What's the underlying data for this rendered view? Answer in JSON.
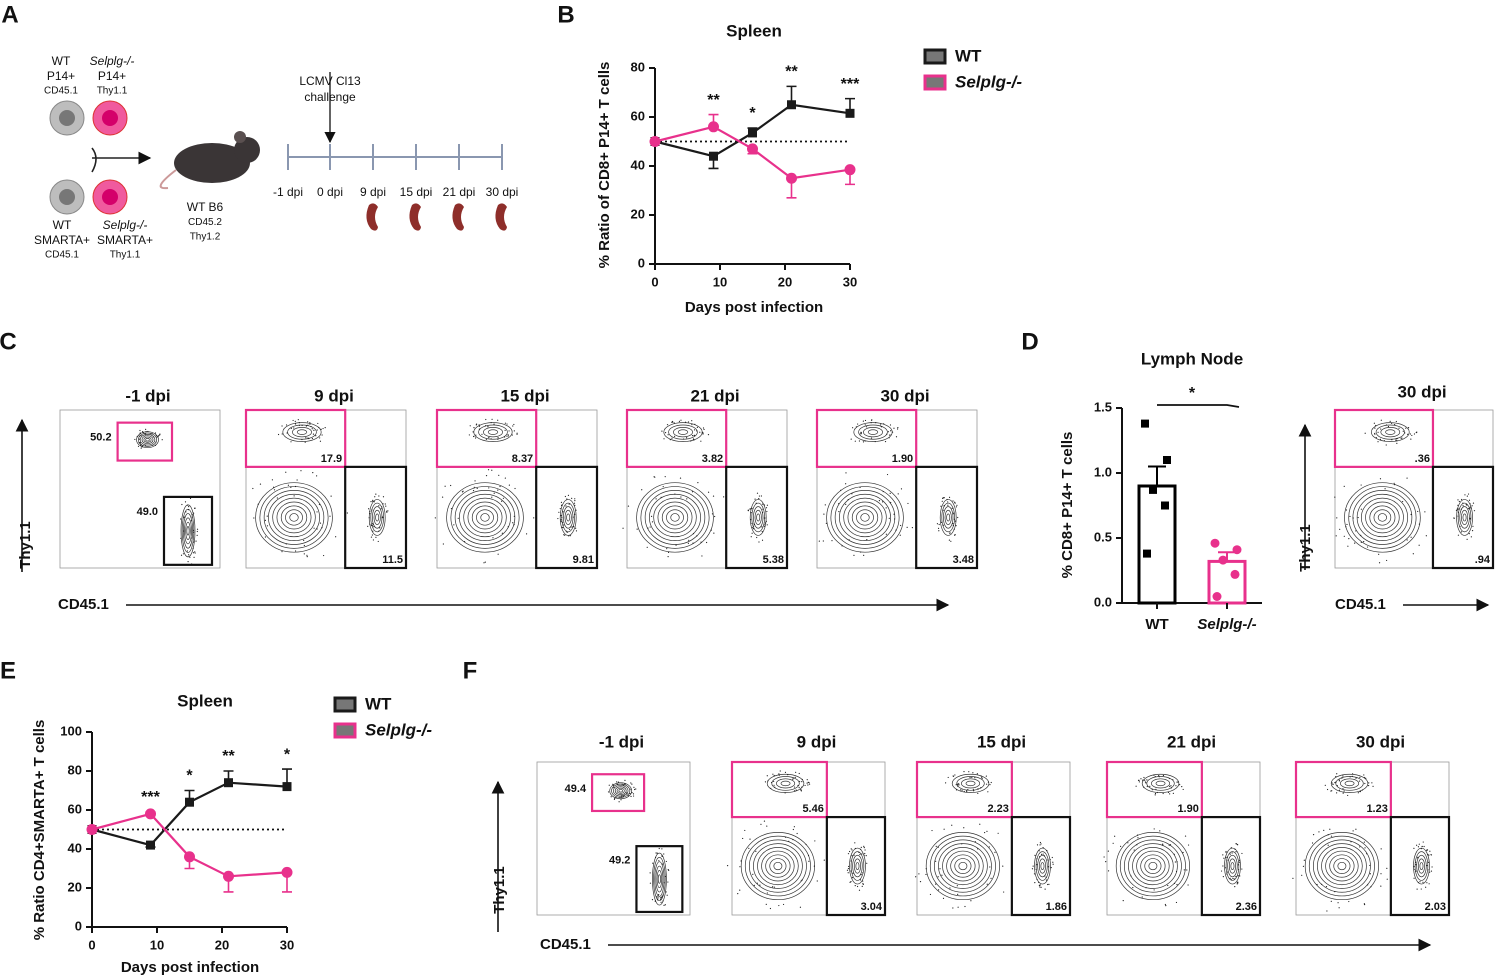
{
  "panel_labels": [
    "A",
    "B",
    "C",
    "D",
    "E",
    "F"
  ],
  "panel_a": {
    "donors": [
      {
        "lines": [
          "WT",
          "P14+",
          "CD45.1"
        ]
      },
      {
        "lines": [
          "Selplg-/-",
          "P14+",
          "Thy1.1"
        ]
      },
      {
        "lines": [
          "WT",
          "SMARTA+",
          "CD45.1"
        ]
      },
      {
        "lines": [
          "Selplg-/-",
          "SMARTA+",
          "Thy1.1"
        ]
      }
    ],
    "host": [
      "WT B6",
      "CD45.2",
      "Thy1.2"
    ],
    "challenge": [
      "LCMV Cl13",
      "challenge"
    ],
    "timeline": [
      "-1 dpi",
      "0 dpi",
      "9 dpi",
      "15 dpi",
      "21 dpi",
      "30 dpi"
    ]
  },
  "chart_data": [
    {
      "type": "line",
      "title": "Spleen",
      "x_label": "Days post infection",
      "y_label": "% Ratio of CD8+ P14+ T cells",
      "x": [
        0,
        9,
        15,
        21,
        30
      ],
      "xlim": [
        0,
        30
      ],
      "xticks": [
        0,
        10,
        20,
        30
      ],
      "ylim": [
        0,
        80
      ],
      "yticks": [
        0,
        20,
        40,
        60,
        80
      ],
      "reference_line": 50,
      "series": [
        {
          "name": "WT",
          "color": "#1a1a1a",
          "marker": "square",
          "values": [
            50,
            44,
            53.5,
            65,
            61.5
          ],
          "errors": [
            0,
            5,
            2,
            7.5,
            6
          ]
        },
        {
          "name": "Selplg-/-",
          "color": "#e8318c",
          "marker": "circle",
          "values": [
            50,
            56,
            47,
            35,
            38.5
          ],
          "errors": [
            0,
            5,
            2,
            8,
            6
          ]
        }
      ],
      "annotations": [
        {
          "x": 9,
          "text": "**"
        },
        {
          "x": 15,
          "text": "*"
        },
        {
          "x": 21,
          "text": "**"
        },
        {
          "x": 30,
          "text": "***"
        }
      ]
    },
    {
      "type": "bar",
      "title": "Lymph Node",
      "y_label": "% CD8+ P14+ T cells",
      "categories": [
        "WT",
        "Selplg-/-"
      ],
      "values": [
        0.9,
        0.32
      ],
      "errors": [
        0.15,
        0.07
      ],
      "points": [
        [
          1.38,
          1.1,
          0.87,
          0.75,
          0.38
        ],
        [
          0.46,
          0.41,
          0.33,
          0.22,
          0.05
        ]
      ],
      "colors": [
        "#000000",
        "#e8318c"
      ],
      "ylim": [
        0,
        1.5
      ],
      "yticks": [
        {
          "value": 0,
          "label": "0.0"
        },
        {
          "value": 0.5,
          "label": "0.5"
        },
        {
          "value": 1,
          "label": "1.0"
        },
        {
          "value": 1.5,
          "label": "1.5"
        }
      ],
      "annotations": [
        {
          "text": "*"
        }
      ]
    },
    {
      "type": "line",
      "title": "Spleen",
      "x_label": "Days post infection",
      "y_label": "% Ratio CD4+SMARTA+ T cells",
      "x": [
        0,
        9,
        15,
        21,
        30
      ],
      "xlim": [
        0,
        30
      ],
      "xticks": [
        0,
        10,
        20,
        30
      ],
      "ylim": [
        0,
        100
      ],
      "yticks": [
        0,
        20,
        40,
        60,
        80,
        100
      ],
      "reference_line": 50,
      "series": [
        {
          "name": "WT",
          "color": "#1a1a1a",
          "marker": "square",
          "values": [
            50,
            42,
            64,
            74,
            72
          ],
          "errors": [
            0,
            1,
            6,
            6,
            9
          ]
        },
        {
          "name": "Selplg-/-",
          "color": "#e8318c",
          "marker": "circle",
          "values": [
            50,
            58,
            36,
            26,
            28
          ],
          "errors": [
            0,
            1,
            6,
            8,
            10
          ]
        }
      ],
      "annotations": [
        {
          "x": 9,
          "text": "***"
        },
        {
          "x": 15,
          "text": "*"
        },
        {
          "x": 21,
          "text": "**"
        },
        {
          "x": 30,
          "text": "*"
        }
      ]
    }
  ],
  "flow": [
    {
      "y_label": "Thy1.1",
      "x_label": "CD45.1",
      "plots": [
        {
          "title": "-1 dpi",
          "upper": "50.2",
          "lower": "49.0"
        },
        {
          "title": "9 dpi",
          "upper": "17.9",
          "lower": "11.5"
        },
        {
          "title": "15 dpi",
          "upper": "8.37",
          "lower": "9.81"
        },
        {
          "title": "21 dpi",
          "upper": "3.82",
          "lower": "5.38"
        },
        {
          "title": "30 dpi",
          "upper": "1.90",
          "lower": "3.48"
        }
      ]
    },
    {
      "y_label": "Thy1.1",
      "x_label": "CD45.1",
      "plots": [
        {
          "title": "30 dpi",
          "upper": ".36",
          "lower": ".94"
        }
      ]
    },
    {
      "y_label": "Thy1.1",
      "x_label": "CD45.1",
      "plots": [
        {
          "title": "-1 dpi",
          "upper": "49.4",
          "lower": "49.2"
        },
        {
          "title": "9 dpi",
          "upper": "5.46",
          "lower": "3.04"
        },
        {
          "title": "15 dpi",
          "upper": "2.23",
          "lower": "1.86"
        },
        {
          "title": "21 dpi",
          "upper": "1.90",
          "lower": "2.36"
        },
        {
          "title": "30 dpi",
          "upper": "1.23",
          "lower": "2.03"
        }
      ]
    }
  ]
}
